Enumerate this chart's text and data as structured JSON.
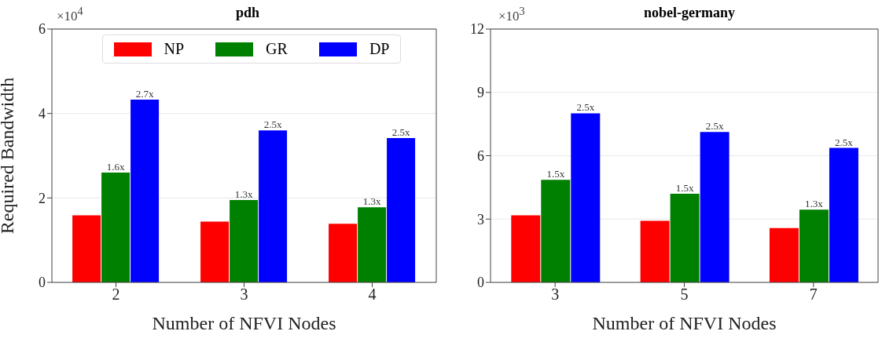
{
  "chart_data": [
    {
      "type": "bar",
      "title": "pdh",
      "xlabel": "Number of NFVI Nodes",
      "ylabel": "Required Bandwidth",
      "categories": [
        "2",
        "3",
        "4"
      ],
      "series": [
        {
          "name": "NP",
          "color": "#ff0000",
          "values": [
            1.59,
            1.44,
            1.39
          ]
        },
        {
          "name": "GR",
          "color": "#008000",
          "values": [
            2.6,
            1.95,
            1.78
          ]
        },
        {
          "name": "DP",
          "color": "#0000ff",
          "values": [
            4.33,
            3.6,
            3.42
          ]
        }
      ],
      "ylim": [
        0,
        6
      ],
      "yticks": [
        0,
        2,
        4,
        6
      ],
      "grid": "y",
      "legend": "top",
      "annotations": [
        "×10$^{4}$",
        {
          "text": "1.6x",
          "x": "2",
          "y": 2.6
        },
        {
          "text": "1.3x",
          "x": "3",
          "y": 1.95
        },
        {
          "text": "1.3x",
          "x": "4",
          "y": 1.78
        },
        "2.7x",
        "2.5x",
        "2.5x"
      ]
    },
    {
      "type": "bar",
      "title": "nobel-germany",
      "xlabel": "Number of NFVI Nodes",
      "categories": [
        "3",
        "5",
        "7"
      ],
      "series": [
        {
          "color": "#ff0000",
          "values": [
            3.18,
            2.92,
            2.57
          ]
        },
        {
          "color": "#008000",
          "values": [
            4.86,
            4.2,
            3.45
          ]
        },
        {
          "color": "#0000ff",
          "values": [
            8.01,
            7.12,
            6.37
          ]
        }
      ],
      "ylim": [
        0,
        12
      ],
      "yticks": [
        0,
        3,
        6,
        9,
        12
      ],
      "grid": "y",
      "legend": false,
      "annotations": [
        "×10$^{3}$",
        {
          "text": "1.5x",
          "x": "3",
          "y": 4.86
        },
        {
          "text": "1.5x",
          "x": "5",
          "y": 4.2
        },
        {
          "text": "1.3x",
          "x": "7",
          "y": 3.45
        },
        "2.5x",
        "2.5x",
        "2.5x"
      ]
    }
  ]
}
